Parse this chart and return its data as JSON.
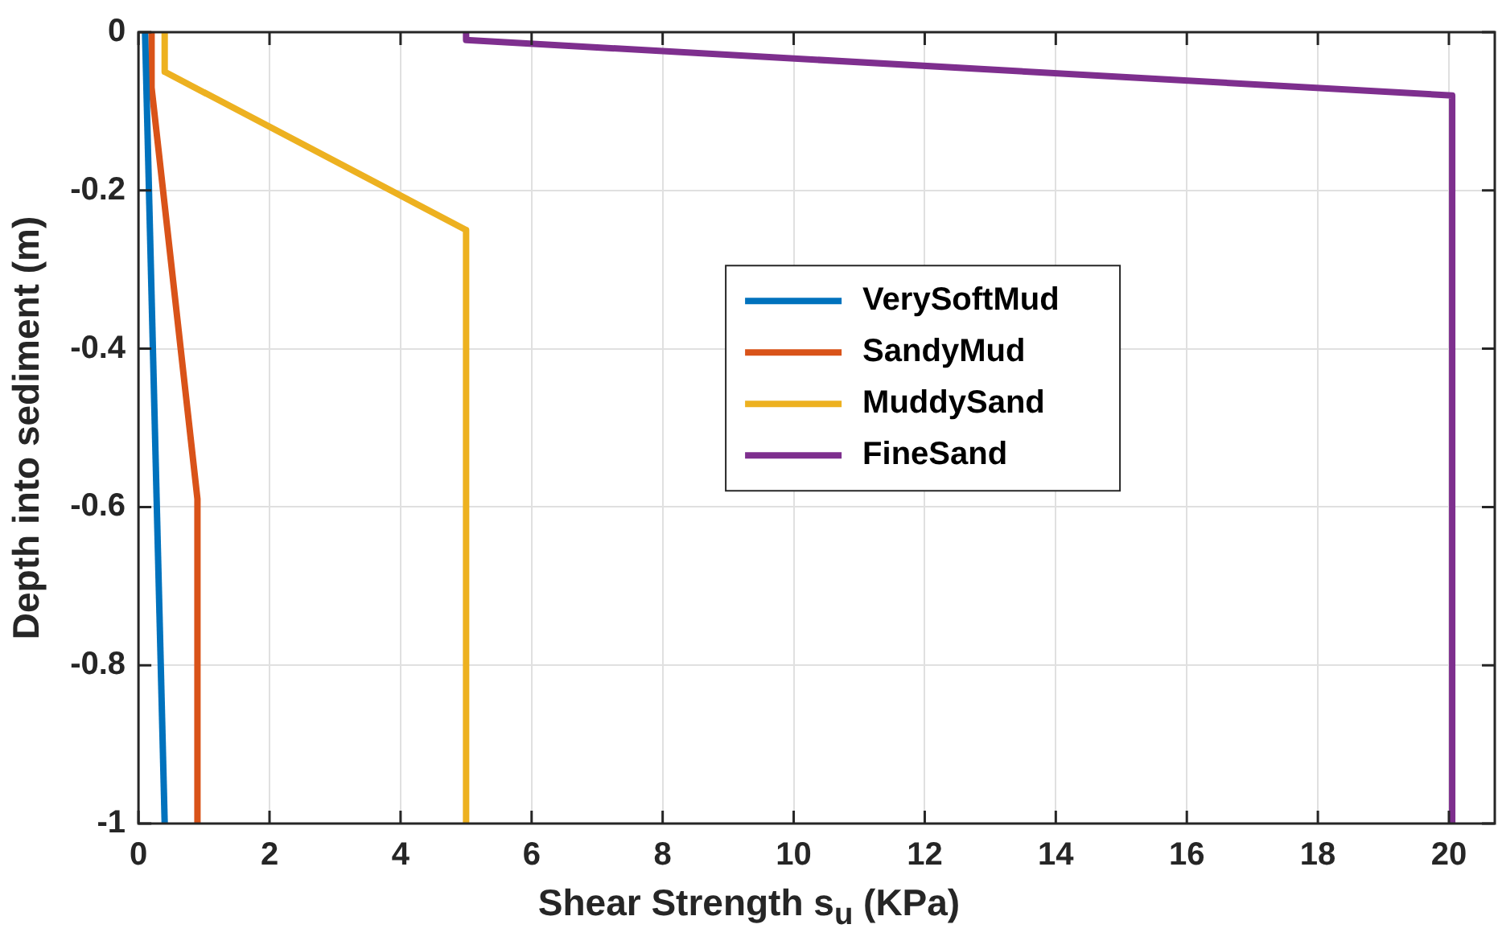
{
  "chart_data": {
    "type": "line",
    "xlabel": "Shear Strength s$_{u}$ (KPa)",
    "ylabel": "Depth into sediment (m)",
    "series": [
      {
        "name": "VerySoftMud",
        "color": "#0072bd",
        "x": [
          0.1,
          0.4
        ],
        "values": [
          0,
          -1
        ]
      },
      {
        "name": "SandyMud",
        "color": "#d95319",
        "x": [
          0.2,
          0.2,
          0.9,
          0.9
        ],
        "values": [
          0,
          -0.07,
          -0.59,
          -1
        ]
      },
      {
        "name": "MuddySand",
        "color": "#edb120",
        "x": [
          0.4,
          0.4,
          5,
          5
        ],
        "values": [
          0,
          -0.05,
          -0.25,
          -1
        ]
      },
      {
        "name": "FineSand",
        "color": "#7e2f8e",
        "x": [
          5,
          5,
          20.05,
          20.05
        ],
        "values": [
          0,
          -0.01,
          -0.08,
          -1
        ]
      }
    ],
    "xlim": [
      0,
      20.7
    ],
    "xticks": [
      0,
      2,
      4,
      6,
      8,
      10,
      12,
      14,
      16,
      18,
      20
    ],
    "ylim": [
      -1,
      0
    ],
    "yticks": [
      -1,
      -0.8,
      -0.6,
      -0.4,
      -0.2,
      0
    ],
    "grid": true,
    "legend": "right",
    "marker": "none",
    "line_style": "solid"
  }
}
